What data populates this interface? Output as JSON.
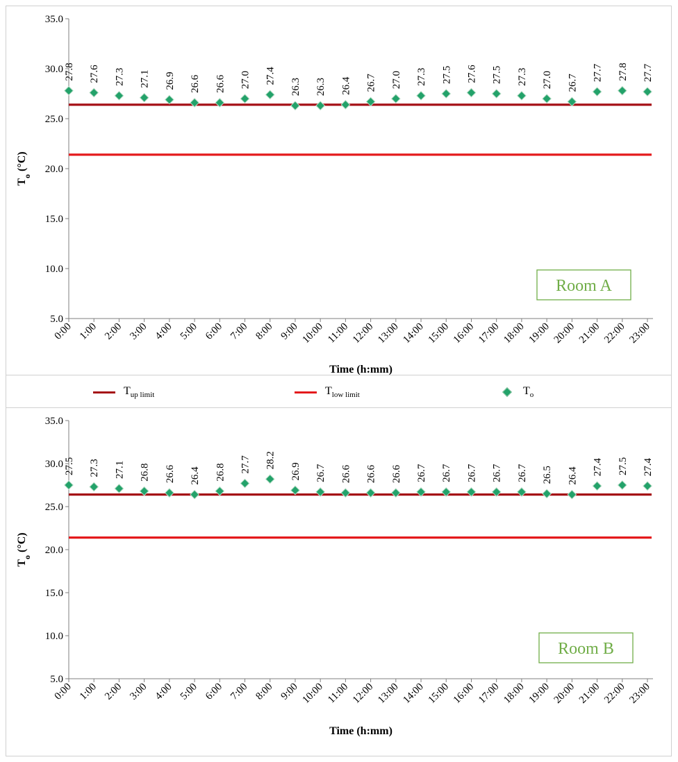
{
  "legend": {
    "up_limit": {
      "main": "T",
      "sub": "up limit",
      "color": "#a50f15"
    },
    "low_limit": {
      "main": "T",
      "sub": "low limit",
      "color": "#e41a1c"
    },
    "to": {
      "main": "T",
      "sub": "o",
      "color": "#23a26a"
    }
  },
  "chart_data": [
    {
      "type": "scatter",
      "room_label": "Room A",
      "xlabel": "Time (h:mm)",
      "ylabel_main": "T",
      "ylabel_sub": "o",
      "ylabel_unit": " (°C)",
      "ylim": [
        5.0,
        35.0
      ],
      "yticks": [
        "5.0",
        "10.0",
        "15.0",
        "20.0",
        "25.0",
        "30.0",
        "35.0"
      ],
      "categories": [
        "0:00",
        "1:00",
        "2:00",
        "3:00",
        "4:00",
        "5:00",
        "6:00",
        "7:00",
        "8:00",
        "9:00",
        "10:00",
        "11:00",
        "12:00",
        "13:00",
        "14:00",
        "15:00",
        "16:00",
        "17:00",
        "18:00",
        "19:00",
        "20:00",
        "21:00",
        "22:00",
        "23:00"
      ],
      "series": [
        {
          "name": "To",
          "values": [
            27.8,
            27.6,
            27.3,
            27.1,
            26.9,
            26.6,
            26.6,
            27.0,
            27.4,
            26.3,
            26.3,
            26.4,
            26.7,
            27.0,
            27.3,
            27.5,
            27.6,
            27.5,
            27.3,
            27.0,
            26.7,
            27.7,
            27.8,
            27.7
          ]
        }
      ],
      "data_labels": [
        "27.8",
        "27.6",
        "27.3",
        "27.1",
        "26.9",
        "26.6",
        "26.6",
        "27.0",
        "27.4",
        "26.3",
        "26.3",
        "26.4",
        "26.7",
        "27.0",
        "27.3",
        "27.5",
        "27.6",
        "27.5",
        "27.3",
        "27.0",
        "26.7",
        "27.7",
        "27.8",
        "27.7"
      ],
      "up_limit": 26.4,
      "low_limit": 21.4,
      "grid": false
    },
    {
      "type": "scatter",
      "room_label": "Room B",
      "xlabel": "Time (h:mm)",
      "ylabel_main": "T",
      "ylabel_sub": "o",
      "ylabel_unit": " (°C)",
      "ylim": [
        5.0,
        35.0
      ],
      "yticks": [
        "5.0",
        "10.0",
        "15.0",
        "20.0",
        "25.0",
        "30.0",
        "35.0"
      ],
      "categories": [
        "0:00",
        "1:00",
        "2:00",
        "3:00",
        "4:00",
        "5:00",
        "6:00",
        "7:00",
        "8:00",
        "9:00",
        "10:00",
        "11:00",
        "12:00",
        "13:00",
        "14:00",
        "15:00",
        "16:00",
        "17:00",
        "18:00",
        "19:00",
        "20:00",
        "21:00",
        "22:00",
        "23:00"
      ],
      "series": [
        {
          "name": "To",
          "values": [
            27.5,
            27.3,
            27.1,
            26.8,
            26.6,
            26.4,
            26.8,
            27.7,
            28.2,
            26.9,
            26.7,
            26.6,
            26.6,
            26.6,
            26.7,
            26.7,
            26.7,
            26.7,
            26.7,
            26.5,
            26.4,
            27.4,
            27.5,
            27.4
          ]
        }
      ],
      "data_labels": [
        "27.5",
        "27.3",
        "27.1",
        "26.8",
        "26.6",
        "26.4",
        "26.8",
        "27.7",
        "28.2",
        "26.9",
        "26.7",
        "26.6",
        "26.6",
        "26.6",
        "26.7",
        "26.7",
        "26.7",
        "26.7",
        "26.7",
        "26.5",
        "26.4",
        "27.4",
        "27.5",
        "27.4"
      ],
      "up_limit": 26.4,
      "low_limit": 21.4,
      "grid": false
    }
  ]
}
